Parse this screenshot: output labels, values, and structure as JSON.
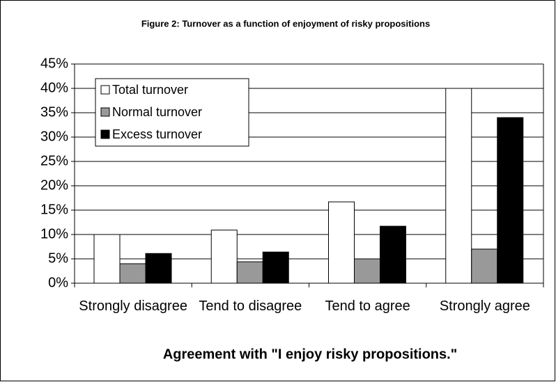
{
  "chart_data": {
    "type": "bar",
    "title": "Figure 2:  Turnover as a function of enjoyment of risky propositions",
    "x_label": "Agreement with \"I enjoy risky propositions.\"",
    "categories": [
      "Strongly disagree",
      "Tend to disagree",
      "Tend to agree",
      "Strongly agree"
    ],
    "series": [
      {
        "name": "Total turnover",
        "color": "#ffffff",
        "values": [
          10,
          10.9,
          16.7,
          40
        ]
      },
      {
        "name": "Normal turnover",
        "color": "#999999",
        "values": [
          4,
          4.4,
          5,
          7
        ]
      },
      {
        "name": "Excess turnover",
        "color": "#000000",
        "values": [
          6.1,
          6.4,
          11.7,
          34
        ]
      }
    ],
    "ylim": [
      0,
      45
    ],
    "yticks": [
      {
        "value": 0,
        "label": "0%"
      },
      {
        "value": 5,
        "label": "5%"
      },
      {
        "value": 10,
        "label": "10%"
      },
      {
        "value": 15,
        "label": "15%"
      },
      {
        "value": 20,
        "label": "20%"
      },
      {
        "value": 25,
        "label": "25%"
      },
      {
        "value": 30,
        "label": "30%"
      },
      {
        "value": 35,
        "label": "35%"
      },
      {
        "value": 40,
        "label": "40%"
      },
      {
        "value": 45,
        "label": "45%"
      }
    ],
    "grid": true,
    "legend": "upper left"
  }
}
